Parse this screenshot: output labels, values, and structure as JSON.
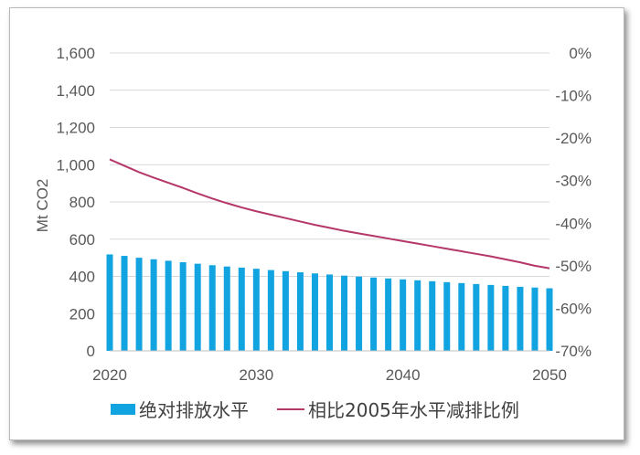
{
  "chart_data": {
    "type": "bar",
    "ylabel": "Mt CO2",
    "ylim": [
      0,
      1600
    ],
    "y_ticks": [
      "0",
      "200",
      "400",
      "600",
      "800",
      "1,000",
      "1,200",
      "1,400",
      "1,600"
    ],
    "y2lim": [
      -70,
      0
    ],
    "y2_ticks": [
      "-70%",
      "-60%",
      "-50%",
      "-40%",
      "-30%",
      "-20%",
      "-10%",
      "0%"
    ],
    "x_ticks": [
      "2020",
      "2030",
      "2040",
      "2050"
    ],
    "grid": true,
    "legend_position": "bottom",
    "categories": [
      2020,
      2021,
      2022,
      2023,
      2024,
      2025,
      2026,
      2027,
      2028,
      2029,
      2030,
      2031,
      2032,
      2033,
      2034,
      2035,
      2036,
      2037,
      2038,
      2039,
      2040,
      2041,
      2042,
      2043,
      2044,
      2045,
      2046,
      2047,
      2048,
      2049,
      2050
    ],
    "series": [
      {
        "name": "绝对排放水平",
        "type": "bar",
        "axis": "left",
        "color": "#12a4e0",
        "values": [
          518,
          510,
          500,
          492,
          484,
          476,
          468,
          460,
          453,
          447,
          441,
          434,
          428,
          422,
          416,
          410,
          404,
          399,
          394,
          389,
          384,
          379,
          374,
          369,
          364,
          359,
          354,
          349,
          344,
          340,
          336
        ]
      },
      {
        "name": "相比2005年水平减排比例",
        "type": "line",
        "axis": "right",
        "color": "#b5376a",
        "values": [
          -25,
          -26.5,
          -28,
          -29.3,
          -30.5,
          -31.7,
          -33,
          -34.2,
          -35.3,
          -36.3,
          -37.2,
          -38,
          -38.8,
          -39.6,
          -40.4,
          -41.1,
          -41.8,
          -42.4,
          -43,
          -43.6,
          -44.2,
          -44.8,
          -45.4,
          -46,
          -46.6,
          -47.2,
          -47.8,
          -48.5,
          -49.2,
          -50,
          -50.6
        ]
      }
    ]
  }
}
